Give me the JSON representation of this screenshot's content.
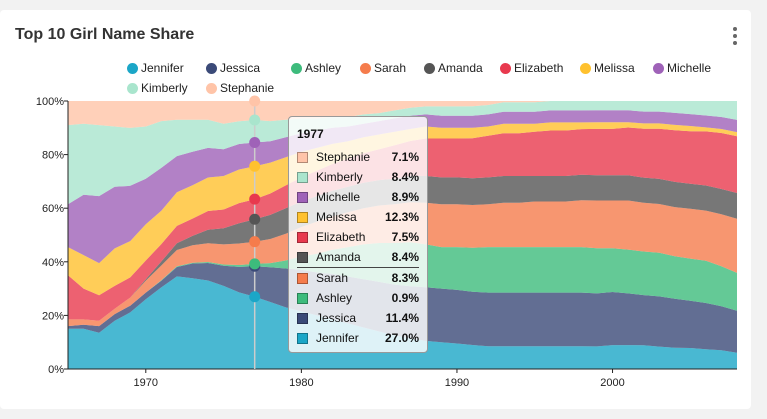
{
  "card": {
    "title": "Top 10 Girl Name Share"
  },
  "chart_data": {
    "type": "area",
    "stacked": true,
    "normalized": true,
    "title": "Top 10 Girl Name Share",
    "xlim": [
      1965,
      2008
    ],
    "ylim": [
      0,
      100
    ],
    "x_ticks": [
      "1970",
      "1980",
      "1990",
      "2000"
    ],
    "y_ticks": [
      "0%",
      "20%",
      "40%",
      "60%",
      "80%",
      "100%"
    ],
    "x": [
      1965,
      1966,
      1967,
      1968,
      1969,
      1970,
      1971,
      1972,
      1973,
      1974,
      1975,
      1976,
      1977,
      1978,
      1979,
      1980,
      1981,
      1982,
      1983,
      1984,
      1985,
      1986,
      1987,
      1988,
      1989,
      1990,
      1991,
      1992,
      1993,
      1994,
      1995,
      1996,
      1997,
      1998,
      1999,
      2000,
      2001,
      2002,
      2003,
      2004,
      2005,
      2006,
      2007,
      2008
    ],
    "series": [
      {
        "name": "Jennifer",
        "color": "#1ba6c7",
        "values": [
          15,
          15,
          13.5,
          18,
          21,
          26,
          30.5,
          34.5,
          34,
          33,
          31,
          28.5,
          27,
          25,
          23,
          21.5,
          20,
          18.5,
          17,
          15.5,
          14,
          12.5,
          11.5,
          10.5,
          10,
          9.5,
          9,
          8.5,
          8.5,
          8.5,
          8.5,
          8.5,
          8.5,
          8.5,
          8.5,
          9,
          9,
          9,
          8.5,
          8,
          8,
          7.5,
          7,
          6
        ]
      },
      {
        "name": "Jessica",
        "color": "#3b4a78",
        "values": [
          1,
          1.5,
          2.5,
          2.5,
          2.5,
          2.5,
          2.5,
          3.5,
          5.5,
          6.5,
          7.5,
          9.5,
          11.4,
          13,
          14.5,
          15.5,
          16,
          17,
          17.5,
          18,
          18.5,
          19,
          19.5,
          20,
          20,
          20,
          20,
          20,
          20,
          20,
          20,
          20,
          20,
          20,
          20,
          20,
          19.5,
          19,
          19,
          18.5,
          18,
          17.5,
          16.5,
          15.5
        ]
      },
      {
        "name": "Ashley",
        "color": "#3dbb7c",
        "values": [
          0,
          0,
          0,
          0,
          0,
          0,
          0.2,
          0.3,
          0.3,
          0.4,
          0.5,
          0.7,
          0.9,
          1.5,
          3,
          5,
          7,
          9,
          11,
          13,
          14.5,
          15.5,
          16.5,
          16,
          15.5,
          16,
          16.5,
          17,
          17,
          17,
          17,
          17,
          17,
          17,
          17,
          16.5,
          16.5,
          16.5,
          16.5,
          16,
          16,
          16,
          15,
          14
        ]
      },
      {
        "name": "Sarah",
        "color": "#f57c4c",
        "values": [
          2.5,
          2,
          2,
          2,
          3,
          4.5,
          5.5,
          6,
          6.5,
          7,
          7.5,
          8,
          8.3,
          9,
          10,
          11,
          12,
          12.5,
          13,
          13.5,
          14,
          14.5,
          15,
          15.5,
          16,
          16,
          16,
          16,
          16.5,
          16.5,
          17,
          17,
          17,
          17.5,
          18,
          18,
          18.5,
          18.5,
          18.5,
          18.5,
          19,
          19,
          19.5,
          20
        ]
      },
      {
        "name": "Amanda",
        "color": "#555555",
        "values": [
          0,
          0,
          0,
          0,
          0,
          0.5,
          1.5,
          2.5,
          3.5,
          5,
          6,
          7.5,
          8.4,
          9,
          9.5,
          9.5,
          9.5,
          9.5,
          9.5,
          9.5,
          9.5,
          9.5,
          10,
          10,
          10,
          10,
          10,
          10,
          10,
          10,
          9.5,
          9.5,
          9.5,
          9.5,
          9.5,
          9.5,
          9.5,
          9.5,
          9.5,
          9.5,
          9.5,
          9.5,
          9.5,
          9.5
        ]
      },
      {
        "name": "Elizabeth",
        "color": "#e8394e",
        "values": [
          16.5,
          11.5,
          9.5,
          8.5,
          7.5,
          7,
          6.5,
          6.5,
          6.5,
          7,
          7,
          7.5,
          7.5,
          8,
          8.5,
          9,
          9.5,
          10,
          10.5,
          11,
          11.5,
          12.5,
          13,
          14,
          14.5,
          14.5,
          15,
          15.5,
          16,
          16,
          16.5,
          17,
          17,
          17,
          17.5,
          17.5,
          18,
          18.5,
          19,
          19.5,
          20,
          20.5,
          21,
          21
        ]
      },
      {
        "name": "Melissa",
        "color": "#ffc12e",
        "values": [
          10.5,
          12.5,
          12,
          14,
          13.5,
          13.5,
          12.5,
          12.5,
          12.5,
          12.5,
          12.5,
          12.5,
          12.3,
          11.5,
          10.5,
          9.5,
          8.5,
          7.5,
          6.5,
          6,
          5.5,
          5,
          4.5,
          4.5,
          4,
          4,
          4,
          3.5,
          3.5,
          3.5,
          3,
          3,
          3,
          2.5,
          2.5,
          2.5,
          2,
          2,
          2,
          2,
          2,
          1.5,
          1.5,
          1.5
        ]
      },
      {
        "name": "Michelle",
        "color": "#9f62b8",
        "values": [
          16,
          22.5,
          25,
          23,
          20.5,
          17,
          16,
          13.5,
          12.5,
          11,
          10,
          9.5,
          8.9,
          8,
          7.5,
          7,
          6.5,
          6,
          5.5,
          5,
          5,
          5,
          5,
          4.5,
          4.5,
          4.5,
          4.5,
          4.5,
          4.5,
          4.5,
          4.5,
          4.5,
          4.5,
          4.5,
          4.5,
          4.5,
          4.5,
          4.5,
          4.5,
          4.5,
          4.5,
          4.5,
          4.5,
          4.5
        ]
      },
      {
        "name": "Kimberly",
        "color": "#a9e5cd",
        "values": [
          29.5,
          26.5,
          26.5,
          22.5,
          21.5,
          19.5,
          17.5,
          13.5,
          12,
          10.5,
          9.5,
          8.5,
          8.4,
          7.5,
          6.5,
          5.5,
          4.5,
          4,
          3.5,
          3.5,
          3,
          3,
          3,
          3,
          3.5,
          3.5,
          3.5,
          3.5,
          3.5,
          3.5,
          3.5,
          3.5,
          3.5,
          3.5,
          3.5,
          3.5,
          3.5,
          4,
          4,
          4.5,
          5,
          5.5,
          6,
          7
        ]
      },
      {
        "name": "Stephanie",
        "color": "#ffc4a8",
        "values": [
          9,
          8.5,
          9,
          9.5,
          10,
          9.5,
          7.5,
          7,
          7,
          7,
          8.5,
          7.5,
          7.1,
          7.5,
          7,
          6.5,
          6.5,
          6,
          6,
          5,
          4.5,
          3.5,
          2.5,
          2,
          2,
          2,
          2,
          1.5,
          0.5,
          0.5,
          0.5,
          0,
          0,
          0,
          0,
          0,
          0,
          0,
          0,
          0,
          0,
          0,
          0,
          0
        ]
      }
    ]
  },
  "hover": {
    "year": "1977",
    "rows": [
      {
        "name": "Stephanie",
        "value": "7.1%",
        "color": "#ffc4a8"
      },
      {
        "name": "Kimberly",
        "value": "8.4%",
        "color": "#a9e5cd"
      },
      {
        "name": "Michelle",
        "value": "8.9%",
        "color": "#9f62b8"
      },
      {
        "name": "Melissa",
        "value": "12.3%",
        "color": "#ffc12e"
      },
      {
        "name": "Elizabeth",
        "value": "7.5%",
        "color": "#e8394e"
      },
      {
        "name": "Amanda",
        "value": "8.4%",
        "color": "#555555"
      },
      {
        "name": "Sarah",
        "value": "8.3%",
        "color": "#f57c4c"
      },
      {
        "name": "Ashley",
        "value": "0.9%",
        "color": "#3dbb7c"
      },
      {
        "name": "Jessica",
        "value": "11.4%",
        "color": "#3b4a78"
      },
      {
        "name": "Jennifer",
        "value": "27.0%",
        "color": "#1ba6c7"
      }
    ]
  }
}
